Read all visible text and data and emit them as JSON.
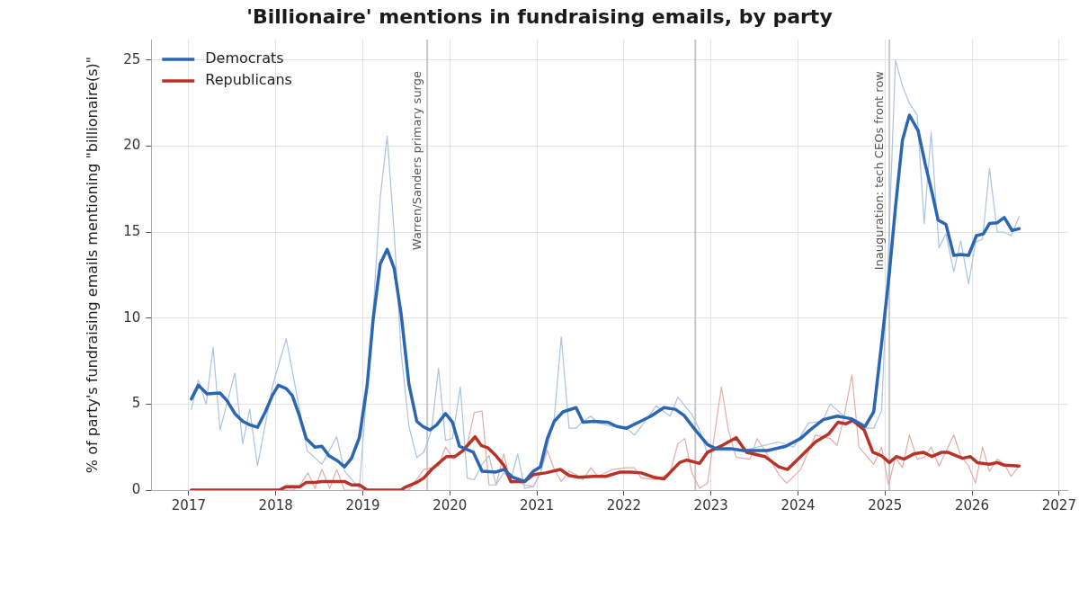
{
  "chart_data": {
    "type": "line",
    "title": "'Billionaire' mentions in fundraising emails, by party",
    "ylabel": "% of party's fundraising emails mentioning \"billionaire(s)\"",
    "xlim": [
      2016.57,
      2027.1
    ],
    "xticks": [
      2017,
      2018,
      2019,
      2020,
      2021,
      2022,
      2023,
      2024,
      2025,
      2026,
      2027
    ],
    "ylim": [
      0,
      26.2
    ],
    "yticks": [
      0,
      5,
      10,
      15,
      20,
      25
    ],
    "grid": true,
    "legend": "top left",
    "marker": "none",
    "line_style": "solid",
    "ref_lines": [
      {
        "axis": "x",
        "value": 2019.74,
        "label": "Warren/Sanders primary surge",
        "color": "#c8c8c8"
      },
      {
        "axis": "x",
        "value": 2022.82,
        "color": "#c8c8c8"
      },
      {
        "axis": "x",
        "value": 2025.05,
        "label": "Inauguration: tech CEOs front row",
        "color": "#c8c8c8"
      }
    ],
    "series": [
      {
        "color": "#aac3e0",
        "x": [
          2017.03,
          2017.11,
          2017.2,
          2017.28,
          2017.36,
          2017.53,
          2017.62,
          2017.7,
          2017.79,
          2017.96,
          2018.12,
          2018.28,
          2018.36,
          2018.53,
          2018.7,
          2018.79,
          2018.96,
          2019.05,
          2019.12,
          2019.2,
          2019.28,
          2019.36,
          2019.44,
          2019.53,
          2019.62,
          2019.7,
          2019.79,
          2019.87,
          2019.95,
          2020.03,
          2020.12,
          2020.2,
          2020.28,
          2020.37,
          2020.45,
          2020.53,
          2020.62,
          2020.7,
          2020.78,
          2020.86,
          2020.96,
          2021.04,
          2021.12,
          2021.2,
          2021.28,
          2021.37,
          2021.45,
          2021.53,
          2021.62,
          2021.7,
          2021.87,
          2022.03,
          2022.12,
          2022.2,
          2022.37,
          2022.53,
          2022.62,
          2022.78,
          2022.87,
          2022.96,
          2023.04,
          2023.2,
          2023.37,
          2023.62,
          2023.78,
          2023.95,
          2024.12,
          2024.28,
          2024.37,
          2024.53,
          2024.62,
          2024.78,
          2024.87,
          2024.96,
          2025.04,
          2025.12,
          2025.2,
          2025.28,
          2025.37,
          2025.45,
          2025.53,
          2025.62,
          2025.7,
          2025.79,
          2025.87,
          2025.96,
          2026.04,
          2026.12,
          2026.2,
          2026.29,
          2026.37,
          2026.45,
          2026.54
        ],
        "values": [
          4.7,
          6.4,
          5.0,
          8.3,
          3.5,
          6.8,
          2.7,
          4.7,
          1.4,
          6.0,
          8.8,
          4.5,
          2.3,
          1.5,
          3.1,
          1.1,
          0.1,
          6.0,
          10.5,
          17.0,
          20.6,
          15.0,
          8.0,
          3.7,
          1.9,
          2.2,
          3.5,
          7.1,
          2.9,
          3.0,
          6.0,
          0.7,
          0.6,
          1.5,
          2.0,
          0.3,
          1.0,
          0.6,
          2.1,
          0.1,
          0.2,
          1.0,
          2.5,
          4.2,
          8.9,
          3.6,
          3.6,
          4.0,
          4.3,
          3.9,
          3.7,
          3.6,
          3.2,
          3.7,
          4.9,
          4.3,
          5.4,
          4.4,
          3.5,
          2.1,
          2.3,
          null,
          2.3,
          null,
          2.8,
          2.5,
          3.9,
          4.0,
          5.0,
          4.3,
          4.0,
          3.6,
          3.6,
          4.6,
          14.0,
          25.0,
          23.5,
          22.5,
          21.8,
          15.5,
          20.8,
          14.1,
          14.9,
          12.7,
          14.5,
          12.0,
          14.4,
          14.6,
          18.7,
          15.0,
          15.0,
          14.8,
          15.9
        ]
      },
      {
        "color": "#e6aaa6",
        "x": [
          2017.03,
          2018.2,
          2018.28,
          2018.37,
          2018.45,
          2018.53,
          2018.62,
          2018.7,
          2018.79,
          2019.03,
          2019.53,
          2019.7,
          2019.87,
          2019.95,
          2020.04,
          2020.2,
          2020.28,
          2020.37,
          2020.45,
          2020.53,
          2020.62,
          2020.7,
          2020.78,
          2020.86,
          2020.96,
          2021.04,
          2021.12,
          2021.2,
          2021.28,
          2021.37,
          2021.45,
          2021.53,
          2021.62,
          2021.7,
          2021.87,
          2022.03,
          2022.12,
          2022.2,
          2022.37,
          2022.53,
          2022.62,
          2022.7,
          2022.78,
          2022.87,
          2022.96,
          2023.12,
          2023.2,
          2023.29,
          2023.45,
          2023.53,
          2023.62,
          2023.78,
          2023.87,
          2024.03,
          2024.2,
          2024.37,
          2024.45,
          2024.53,
          2024.62,
          2024.7,
          2024.87,
          2024.96,
          2025.04,
          2025.12,
          2025.2,
          2025.28,
          2025.37,
          2025.45,
          2025.53,
          2025.62,
          2025.79,
          2025.87,
          2025.96,
          2026.04,
          2026.12,
          2026.2,
          2026.29,
          2026.37,
          2026.45,
          2026.54
        ],
        "values": [
          0,
          0,
          0.3,
          1.0,
          0.1,
          1.2,
          0.1,
          1.2,
          0,
          0,
          0,
          1.2,
          1.4,
          2.5,
          1.8,
          2.6,
          4.5,
          4.6,
          0.3,
          0.3,
          2.1,
          0.4,
          0.5,
          0.3,
          0.2,
          1.0,
          2.3,
          1.2,
          0.5,
          1.1,
          0.9,
          0.6,
          1.3,
          0.8,
          1.2,
          1.3,
          1.3,
          0.7,
          0.6,
          1.0,
          2.7,
          3.0,
          1.0,
          0.1,
          0.4,
          6.0,
          3.5,
          1.9,
          1.8,
          3.0,
          2.3,
          0.9,
          0.4,
          1.2,
          3.2,
          3.0,
          2.6,
          4.3,
          6.7,
          2.5,
          1.5,
          2.5,
          0.3,
          1.9,
          1.3,
          3.2,
          1.8,
          1.9,
          2.5,
          1.4,
          3.2,
          2.0,
          1.4,
          0.4,
          2.5,
          1.1,
          1.8,
          1.5,
          0.8,
          1.4
        ]
      },
      {
        "name": "Democrats",
        "color": "#2a66b1",
        "x": [
          2017.03,
          2017.11,
          2017.21,
          2017.36,
          2017.44,
          2017.53,
          2017.62,
          2017.7,
          2017.79,
          2017.88,
          2017.96,
          2018.03,
          2018.12,
          2018.19,
          2018.27,
          2018.35,
          2018.45,
          2018.53,
          2018.61,
          2018.71,
          2018.79,
          2018.87,
          2018.96,
          2019.05,
          2019.12,
          2019.2,
          2019.28,
          2019.36,
          2019.44,
          2019.53,
          2019.62,
          2019.69,
          2019.77,
          2019.85,
          2019.95,
          2020.03,
          2020.11,
          2020.27,
          2020.37,
          2020.53,
          2020.62,
          2020.72,
          2020.86,
          2020.96,
          2021.04,
          2021.12,
          2021.2,
          2021.3,
          2021.45,
          2021.53,
          2021.65,
          2021.81,
          2021.92,
          2022.03,
          2022.17,
          2022.31,
          2022.46,
          2022.59,
          2022.69,
          2022.82,
          2022.96,
          2023.06,
          2023.24,
          2023.37,
          2023.65,
          2023.86,
          2024.03,
          2024.14,
          2024.29,
          2024.45,
          2024.61,
          2024.77,
          2024.87,
          2024.96,
          2025.05,
          2025.12,
          2025.2,
          2025.28,
          2025.38,
          2025.46,
          2025.54,
          2025.61,
          2025.7,
          2025.79,
          2025.87,
          2025.96,
          2026.05,
          2026.13,
          2026.2,
          2026.29,
          2026.37,
          2026.46,
          2026.54
        ],
        "values": [
          5.3,
          6.1,
          5.6,
          5.65,
          5.2,
          4.45,
          4.0,
          3.8,
          3.65,
          4.55,
          5.5,
          6.1,
          5.9,
          5.5,
          4.35,
          3.0,
          2.5,
          2.55,
          2.0,
          1.7,
          1.35,
          1.85,
          3.05,
          6.1,
          10.0,
          13.15,
          14.0,
          12.9,
          10.25,
          6.15,
          4.0,
          3.7,
          3.5,
          3.8,
          4.45,
          3.95,
          2.55,
          2.2,
          1.1,
          1.05,
          1.2,
          0.75,
          0.5,
          1.1,
          1.35,
          3.0,
          4.0,
          4.55,
          4.8,
          3.95,
          4.0,
          3.95,
          3.7,
          3.6,
          3.95,
          4.3,
          4.8,
          4.7,
          4.35,
          3.5,
          2.65,
          2.4,
          2.4,
          2.3,
          2.3,
          2.55,
          3.0,
          3.5,
          4.1,
          4.3,
          4.15,
          3.7,
          4.55,
          8.5,
          12.65,
          16.45,
          20.35,
          21.8,
          20.9,
          19.0,
          17.3,
          15.7,
          15.45,
          13.65,
          13.7,
          13.65,
          14.8,
          14.9,
          15.5,
          15.55,
          15.85,
          15.1,
          15.2
        ]
      },
      {
        "name": "Republicans",
        "color": "#b83227",
        "x": [
          2017.03,
          2018.04,
          2018.12,
          2018.28,
          2018.35,
          2018.45,
          2018.53,
          2018.79,
          2018.87,
          2018.96,
          2019.05,
          2019.44,
          2019.48,
          2019.62,
          2019.7,
          2019.79,
          2019.96,
          2020.06,
          2020.15,
          2020.29,
          2020.36,
          2020.44,
          2020.53,
          2020.62,
          2020.7,
          2020.86,
          2020.96,
          2021.1,
          2021.27,
          2021.37,
          2021.48,
          2021.65,
          2021.79,
          2021.96,
          2022.08,
          2022.2,
          2022.34,
          2022.46,
          2022.64,
          2022.72,
          2022.87,
          2022.96,
          2023.13,
          2023.29,
          2023.41,
          2023.62,
          2023.78,
          2023.88,
          2024.03,
          2024.2,
          2024.35,
          2024.46,
          2024.55,
          2024.63,
          2024.76,
          2024.86,
          2024.96,
          2025.05,
          2025.13,
          2025.22,
          2025.33,
          2025.44,
          2025.54,
          2025.65,
          2025.72,
          2025.89,
          2025.98,
          2026.06,
          2026.2,
          2026.29,
          2026.37,
          2026.54
        ],
        "values": [
          0,
          0,
          0.2,
          0.2,
          0.45,
          0.45,
          0.5,
          0.5,
          0.3,
          0.3,
          0,
          0,
          0.15,
          0.45,
          0.7,
          1.2,
          1.95,
          1.95,
          2.3,
          3.1,
          2.6,
          2.45,
          2.0,
          1.45,
          0.5,
          0.5,
          0.9,
          1.0,
          1.2,
          0.85,
          0.75,
          0.8,
          0.8,
          1.05,
          1.05,
          1.0,
          0.75,
          0.65,
          1.6,
          1.75,
          1.55,
          2.2,
          2.6,
          3.05,
          2.2,
          1.95,
          1.35,
          1.2,
          1.95,
          2.8,
          3.25,
          3.95,
          3.85,
          4.05,
          3.5,
          2.2,
          2.0,
          1.6,
          1.95,
          1.8,
          2.1,
          2.2,
          1.95,
          2.2,
          2.2,
          1.85,
          1.95,
          1.6,
          1.5,
          1.6,
          1.45,
          1.4
        ]
      }
    ]
  }
}
